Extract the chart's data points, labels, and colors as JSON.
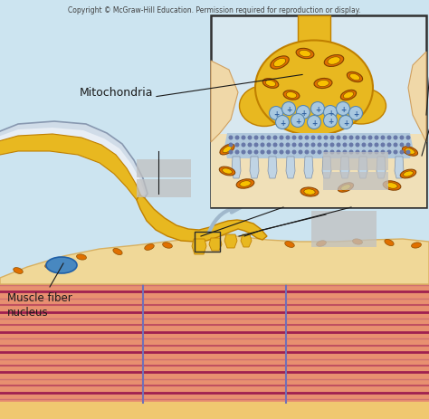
{
  "copyright_text": "Copyright © McGraw-Hill Education. Permission required for reproduction or display.",
  "label_mitochondria": "Mitochondria",
  "label_muscle_fiber": "Muscle fiber\nnucleus",
  "bg_top": "#cce4f0",
  "bg_bottom": "#d8eef8",
  "muscle_bg": "#f0b080",
  "muscle_stripe_light": "#e09090",
  "muscle_stripe_dark": "#b03060",
  "muscle_stripe_mid": "#d07070",
  "muscle_surface_tan": "#f0d898",
  "muscle_surface_edge": "#d8b060",
  "nerve_yellow": "#e8b820",
  "nerve_dark": "#c08000",
  "nerve_inner": "#f0c840",
  "sheath_outer": "#c8d8e8",
  "sheath_edge": "#909ab0",
  "mito_orange": "#e07000",
  "mito_yellow": "#f8c000",
  "nucleus_blue": "#4888c0",
  "nucleus_edge": "#2060a8",
  "vesicle_fill": "#a8c8e0",
  "vesicle_edge": "#5888b0",
  "dot_color": "#6878a8",
  "inset_bg_nerve": "#d8e8f0",
  "inset_bg_tan": "#f0e0b8",
  "inset_border": "#303030",
  "label_color": "#1a1a1a",
  "ann_color": "#1a1a1a",
  "grey_box": "#c0c0c0",
  "arrow_color": "#a0b8cc"
}
